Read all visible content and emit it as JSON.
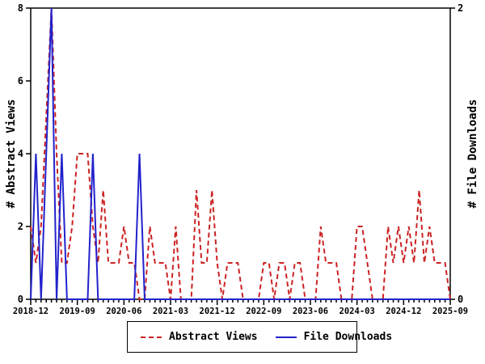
{
  "chart_data": {
    "type": "line",
    "title": "",
    "x_start": "2018-12",
    "x_end": "2025-09",
    "x_points": 82,
    "x_tick_every_points": 9,
    "x_tick_labels": [
      "2018-12",
      "2019-09",
      "2020-06",
      "2021-03",
      "2021-12",
      "2022-09",
      "2023-06",
      "2024-03",
      "2024-12",
      "2025-09"
    ],
    "ylabel_left": "# Abstract Views",
    "ylabel_right": "# File Downloads",
    "y_left_range": [
      0,
      8
    ],
    "y_left_ticks": [
      0,
      2,
      4,
      6,
      8
    ],
    "y_right_range": [
      0,
      2
    ],
    "y_right_ticks": [
      0,
      2
    ],
    "grid": false,
    "legend_position": "bottom-center",
    "frame_color": "#000000",
    "series": [
      {
        "name": "Abstract Views",
        "axis": "left",
        "color": "#cc2222",
        "style": "dashed",
        "values": [
          2,
          1,
          2,
          5,
          8,
          4,
          1,
          1,
          2,
          4,
          4,
          4,
          2,
          1,
          3,
          1,
          1,
          1,
          2,
          1,
          1,
          0,
          0,
          2,
          1,
          1,
          1,
          0,
          2,
          0,
          0,
          0,
          3,
          1,
          1,
          3,
          1,
          0,
          1,
          1,
          1,
          0,
          0,
          0,
          0,
          1,
          1,
          0,
          1,
          1,
          0,
          1,
          1,
          0,
          0,
          0,
          2,
          1,
          1,
          1,
          0,
          0,
          0,
          2,
          2,
          1,
          0,
          0,
          0,
          2,
          1,
          2,
          1,
          2,
          1,
          3,
          1,
          2,
          1,
          1,
          1,
          0
        ]
      },
      {
        "name": "File Downloads",
        "axis": "right",
        "color": "#2222cc",
        "style": "solid",
        "values": [
          0,
          1,
          0,
          1,
          2,
          0,
          1,
          0,
          0,
          0,
          0,
          0,
          1,
          0,
          0,
          0,
          0,
          0,
          0,
          0,
          0,
          1,
          0,
          0,
          0,
          0,
          0,
          0,
          0,
          0,
          0,
          0,
          0,
          0,
          0,
          0,
          0,
          0,
          0,
          0,
          0,
          0,
          0,
          0,
          0,
          0,
          0,
          0,
          0,
          0,
          0,
          0,
          0,
          0,
          0,
          0,
          0,
          0,
          0,
          0,
          0,
          0,
          0,
          0,
          0,
          0,
          0,
          0,
          0,
          0,
          0,
          0,
          0,
          0,
          0,
          0,
          0,
          0,
          0,
          0,
          0,
          0
        ]
      }
    ]
  }
}
